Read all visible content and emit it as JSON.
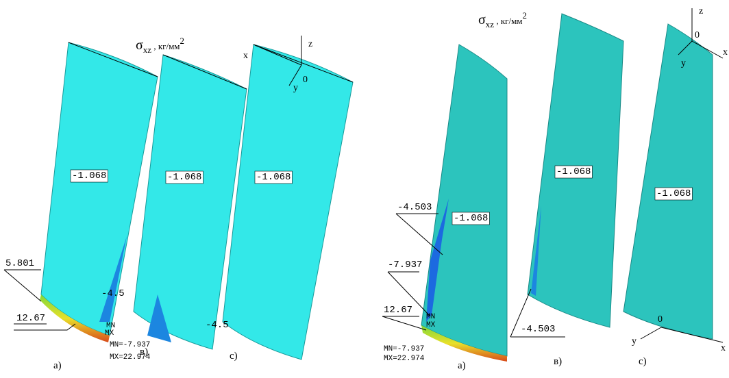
{
  "panels": [
    {
      "title": {
        "symbol": "σ",
        "sub": "xz",
        "unit": " , кг/мм",
        "sup": "2"
      },
      "axes": [
        "z",
        "x",
        "y",
        "0"
      ],
      "values": [
        "-1.068",
        "-1.068",
        "-1.068",
        "5.801",
        "-4.5",
        "12.67",
        "MN",
        "MX",
        "-4.5"
      ],
      "summary": [
        "MN=-7.937",
        "MX=22.974"
      ],
      "captions": [
        "a)",
        "в)",
        "c)"
      ]
    },
    {
      "title": {
        "symbol": "σ",
        "sub": "xz",
        "unit": " , кг/мм",
        "sup": "2"
      },
      "axes": [
        "z",
        "0",
        "y",
        "x",
        "0",
        "y",
        "x"
      ],
      "values": [
        "-1.068",
        "-1.068",
        "-1.068",
        "-4.503",
        "-7.937",
        "12.67",
        "MN",
        "MX",
        "-4.503"
      ],
      "summary": [
        "MN=-7.937",
        "MX=22.974"
      ],
      "captions": [
        "a)",
        "в)",
        "c)"
      ]
    }
  ]
}
